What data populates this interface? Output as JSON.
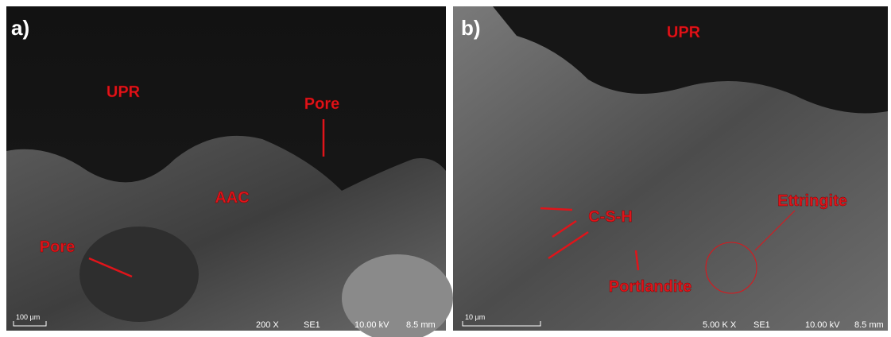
{
  "panels": [
    {
      "label": "a)",
      "annotations": [
        "UPR",
        "Pore",
        "AAC",
        "Pore"
      ],
      "scale_bar": "100 µm",
      "info": [
        "200 X",
        "SE1",
        "10.00 kV",
        "8.5 mm"
      ]
    },
    {
      "label": "b)",
      "annotations": [
        "UPR",
        "C-S-H",
        "Portlandite",
        "Ettringite"
      ],
      "scale_bar": "10 µm",
      "info": [
        "5.00 K X",
        "SE1",
        "10.00 kV",
        "8.5 mm"
      ]
    }
  ]
}
